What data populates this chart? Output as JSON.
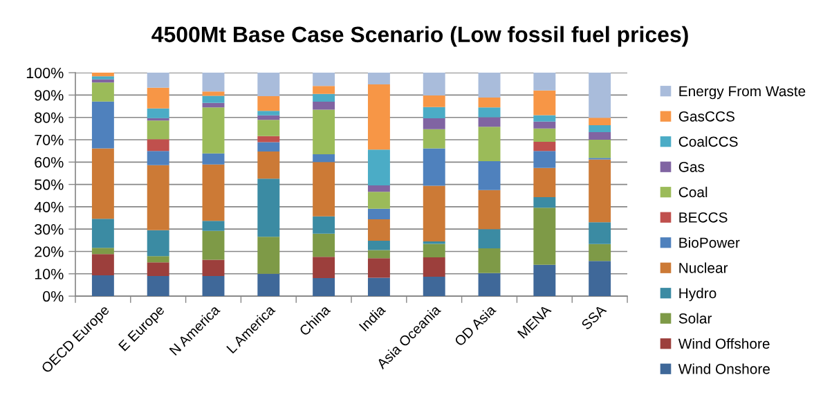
{
  "chart_data": {
    "type": "bar",
    "title": "4500Mt Base Case Scenario (Low fossil fuel prices)",
    "categories": [
      "OECD Europe",
      "E Europe",
      "N America",
      "L America",
      "China",
      "India",
      "Asia Oceania",
      "OD Asia",
      "MENA",
      "SSA"
    ],
    "stacked": true,
    "grid": "y",
    "legend": "right",
    "ylim": [
      0,
      100
    ],
    "yticks": [
      {
        "value": 0,
        "label": "0%"
      },
      {
        "value": 10,
        "label": "10%"
      },
      {
        "value": 20,
        "label": "20%"
      },
      {
        "value": 30,
        "label": "30%"
      },
      {
        "value": 40,
        "label": "40%"
      },
      {
        "value": 50,
        "label": "50%"
      },
      {
        "value": 60,
        "label": "60%"
      },
      {
        "value": 70,
        "label": "70%"
      },
      {
        "value": 80,
        "label": "80%"
      },
      {
        "value": 90,
        "label": "90%"
      },
      {
        "value": 100,
        "label": "100%"
      }
    ],
    "series": [
      {
        "name": "Wind Onshore",
        "color": "#3f6899",
        "values": [
          9.3,
          9.0,
          9.0,
          10.0,
          8.1,
          8.2,
          8.7,
          10.3,
          14.0,
          15.7
        ]
      },
      {
        "name": "Wind Offshore",
        "color": "#9c3f3c",
        "values": [
          9.5,
          6.1,
          7.3,
          0,
          9.5,
          8.8,
          8.7,
          0,
          0,
          0
        ]
      },
      {
        "name": "Solar",
        "color": "#7e9a47",
        "values": [
          2.8,
          2.8,
          12.9,
          16.6,
          10.4,
          3.6,
          6.0,
          11.1,
          25.6,
          7.6
        ]
      },
      {
        "name": "Hydro",
        "color": "#3b8ba3",
        "values": [
          13.0,
          11.6,
          4.5,
          26.0,
          7.7,
          4.2,
          1.1,
          8.6,
          4.7,
          9.8
        ]
      },
      {
        "name": "Nuclear",
        "color": "#cc7a36",
        "values": [
          31.5,
          29.1,
          25.2,
          12.1,
          24.3,
          9.6,
          24.9,
          17.5,
          13.1,
          28.1
        ]
      },
      {
        "name": "BioPower",
        "color": "#4f81bd",
        "values": [
          21.0,
          6.4,
          5.0,
          4.2,
          3.5,
          4.7,
          16.7,
          12.9,
          7.6,
          0.7
        ]
      },
      {
        "name": "BECCS",
        "color": "#c0504d",
        "values": [
          0,
          5.2,
          0,
          2.7,
          0,
          0,
          0,
          0,
          4.1,
          0
        ]
      },
      {
        "name": "Coal",
        "color": "#9bbb59",
        "values": [
          8.5,
          8.4,
          20.6,
          7.3,
          20.0,
          7.6,
          8.6,
          15.4,
          5.9,
          8.1
        ]
      },
      {
        "name": "Gas",
        "color": "#8064a2",
        "values": [
          1.4,
          1.1,
          2.0,
          2.0,
          3.5,
          2.9,
          4.9,
          4.3,
          3.1,
          3.4
        ]
      },
      {
        "name": "CoalCCS",
        "color": "#4bacc6",
        "values": [
          1.4,
          4.3,
          3.2,
          2.0,
          3.5,
          16.0,
          5.0,
          4.4,
          2.9,
          3.1
        ]
      },
      {
        "name": "GasCCS",
        "color": "#f79646",
        "values": [
          1.6,
          9.3,
          1.9,
          6.6,
          3.6,
          29.2,
          5.2,
          4.4,
          11.1,
          3.3
        ]
      },
      {
        "name": "Energy From Waste",
        "color": "#a9bcdb",
        "values": [
          0,
          6.7,
          8.4,
          10.5,
          5.9,
          5.2,
          10.2,
          11.1,
          7.9,
          20.2
        ]
      }
    ]
  }
}
